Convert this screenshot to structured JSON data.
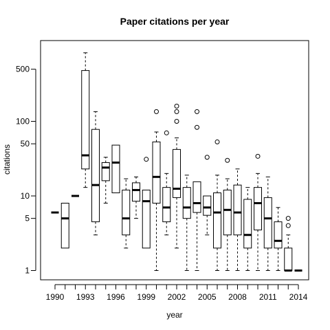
{
  "chart_data": {
    "type": "boxplot",
    "title": "Paper citations per year",
    "xlabel": "year",
    "ylabel": "citations",
    "yscale": "log",
    "ylim": [
      0.75,
      1000
    ],
    "y_ticks": [
      1,
      5,
      10,
      50,
      100,
      500
    ],
    "categories": [
      "1990",
      "1991",
      "1992",
      "1993",
      "1994",
      "1995",
      "1996",
      "1997",
      "1998",
      "1999",
      "2000",
      "2001",
      "2002",
      "2003",
      "2004",
      "2005",
      "2006",
      "2007",
      "2008",
      "2009",
      "2010",
      "2011",
      "2012",
      "2013",
      "2014"
    ],
    "x_tick_labels": [
      "1990",
      "1993",
      "1996",
      "1999",
      "2002",
      "2005",
      "2008",
      "2011",
      "2014"
    ],
    "boxes": [
      {
        "year": "1990",
        "whisker_low": 6,
        "q1": 6,
        "median": 6,
        "q3": 6,
        "whisker_high": 6,
        "outliers": []
      },
      {
        "year": "1991",
        "whisker_low": 2,
        "q1": 2,
        "median": 5,
        "q3": 8,
        "whisker_high": 8,
        "outliers": []
      },
      {
        "year": "1992",
        "whisker_low": 10,
        "q1": 10,
        "median": 10,
        "q3": 10,
        "whisker_high": 10,
        "outliers": []
      },
      {
        "year": "1993",
        "whisker_low": 13,
        "q1": 23,
        "median": 35,
        "q3": 480,
        "whisker_high": 830,
        "outliers": []
      },
      {
        "year": "1994",
        "whisker_low": 3,
        "q1": 4.5,
        "median": 14,
        "q3": 78,
        "whisker_high": 135,
        "outliers": []
      },
      {
        "year": "1995",
        "whisker_low": 8,
        "q1": 16,
        "median": 24,
        "q3": 28,
        "whisker_high": 33,
        "outliers": []
      },
      {
        "year": "1996",
        "whisker_low": 11,
        "q1": 11,
        "median": 28,
        "q3": 48,
        "whisker_high": 48,
        "outliers": []
      },
      {
        "year": "1997",
        "whisker_low": 2,
        "q1": 3,
        "median": 5,
        "q3": 12,
        "whisker_high": 17,
        "outliers": []
      },
      {
        "year": "1998",
        "whisker_low": 5,
        "q1": 8.5,
        "median": 12,
        "q3": 15,
        "whisker_high": 18,
        "outliers": []
      },
      {
        "year": "1999",
        "whisker_low": 2,
        "q1": 2,
        "median": 8.5,
        "q3": 12,
        "whisker_high": 12,
        "outliers": [
          31
        ]
      },
      {
        "year": "2000",
        "whisker_low": 1,
        "q1": 8,
        "median": 18,
        "q3": 53,
        "whisker_high": 72,
        "outliers": [
          135
        ]
      },
      {
        "year": "2001",
        "whisker_low": 3,
        "q1": 4.5,
        "median": 7,
        "q3": 13,
        "whisker_high": 20,
        "outliers": [
          70
        ]
      },
      {
        "year": "2002",
        "whisker_low": 2,
        "q1": 9.5,
        "median": 12.5,
        "q3": 42,
        "whisker_high": 60,
        "outliers": [
          100,
          135,
          160
        ]
      },
      {
        "year": "2003",
        "whisker_low": 1,
        "q1": 5,
        "median": 7,
        "q3": 13,
        "whisker_high": 19,
        "outliers": []
      },
      {
        "year": "2004",
        "whisker_low": 1,
        "q1": 6,
        "median": 8,
        "q3": 15.5,
        "whisker_high": 15.5,
        "outliers": [
          83,
          135
        ]
      },
      {
        "year": "2005",
        "whisker_low": 3,
        "q1": 5.5,
        "median": 7,
        "q3": 10,
        "whisker_high": 10,
        "outliers": [
          33
        ]
      },
      {
        "year": "2006",
        "whisker_low": 1,
        "q1": 2,
        "median": 6,
        "q3": 11,
        "whisker_high": 19,
        "outliers": [
          53
        ]
      },
      {
        "year": "2007",
        "whisker_low": 1,
        "q1": 3,
        "median": 6.5,
        "q3": 12,
        "whisker_high": 17,
        "outliers": [
          30
        ]
      },
      {
        "year": "2008",
        "whisker_low": 1,
        "q1": 3,
        "median": 6,
        "q3": 14,
        "whisker_high": 23,
        "outliers": []
      },
      {
        "year": "2009",
        "whisker_low": 1,
        "q1": 2,
        "median": 3,
        "q3": 9,
        "whisker_high": 13,
        "outliers": []
      },
      {
        "year": "2010",
        "whisker_low": 1,
        "q1": 3.5,
        "median": 8,
        "q3": 13,
        "whisker_high": 20,
        "outliers": [
          34
        ]
      },
      {
        "year": "2011",
        "whisker_low": 1,
        "q1": 2,
        "median": 5,
        "q3": 9.5,
        "whisker_high": 18,
        "outliers": []
      },
      {
        "year": "2012",
        "whisker_low": 1,
        "q1": 2,
        "median": 2.5,
        "q3": 4.5,
        "whisker_high": 7,
        "outliers": []
      },
      {
        "year": "2013",
        "whisker_low": 1,
        "q1": 1,
        "median": 1,
        "q3": 2,
        "whisker_high": 3,
        "outliers": [
          4,
          5
        ]
      },
      {
        "year": "2014",
        "whisker_low": 1,
        "q1": 1,
        "median": 1,
        "q3": 1,
        "whisker_high": 1,
        "outliers": []
      }
    ]
  }
}
